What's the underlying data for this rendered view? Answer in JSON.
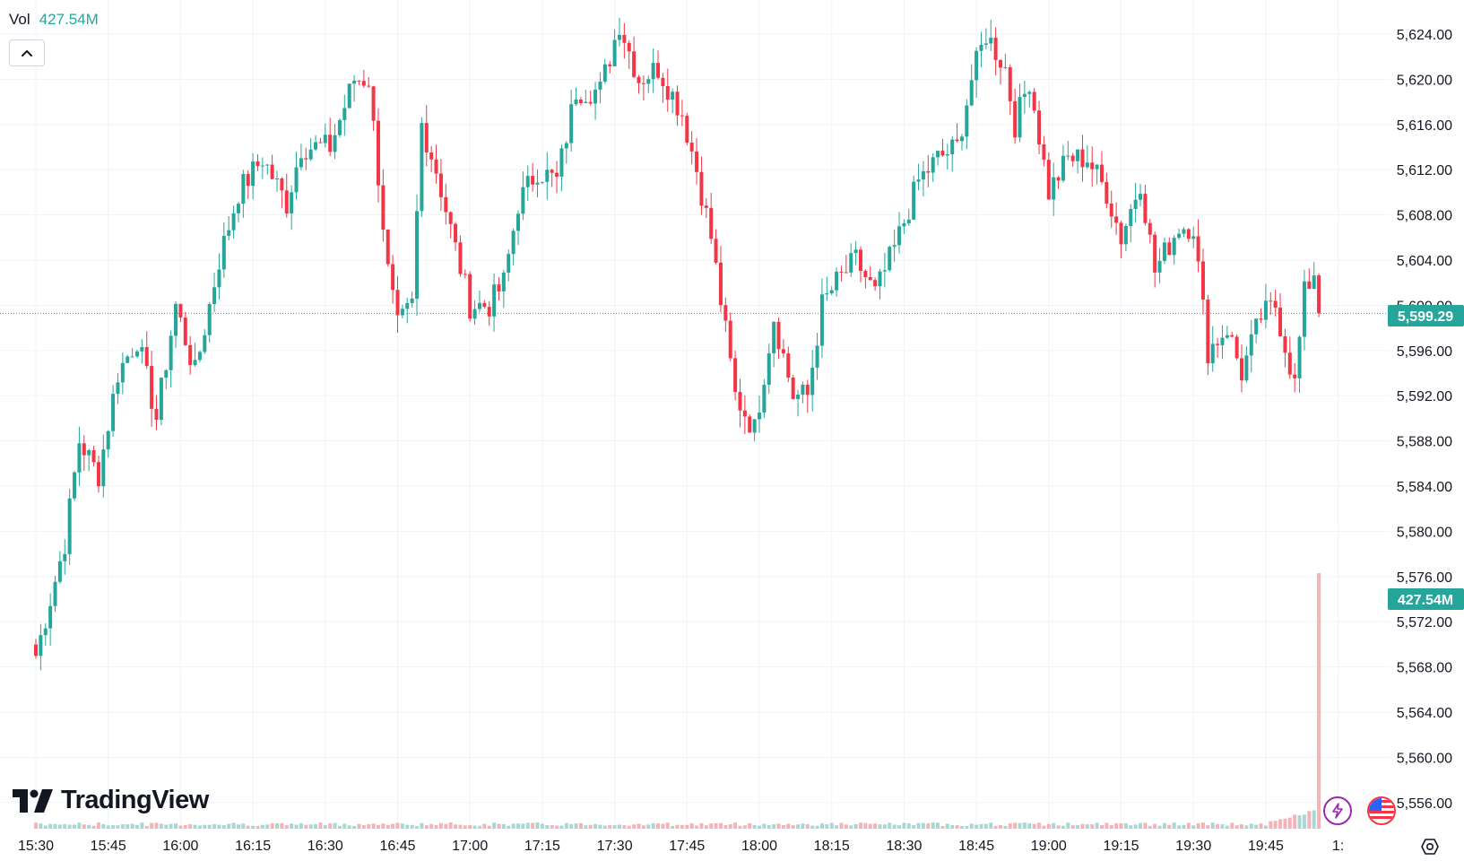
{
  "volume_legend": {
    "label": "Vol",
    "value": "427.54M"
  },
  "brand": {
    "name": "TradingView"
  },
  "price_badge": {
    "text": "5,599.29"
  },
  "volume_badge": {
    "text": "427.54M"
  },
  "icons": {
    "collapse": "chevron-up-icon",
    "flash": "lightning-icon",
    "flag": "us-flag-icon",
    "settings": "settings-icon",
    "logo": "tradingview-logo-icon"
  },
  "colors": {
    "up": "#26a69a",
    "down": "#f23645",
    "grid": "#f0f3fa",
    "volume_up": "#a7d8d3",
    "volume_down": "#f5b3b8",
    "text": "#131722"
  },
  "chart_data": {
    "type": "candlestick",
    "title": "",
    "x_ticks": [
      "15:30",
      "15:45",
      "16:00",
      "16:15",
      "16:30",
      "16:45",
      "17:00",
      "17:15",
      "17:30",
      "17:45",
      "18:00",
      "18:15",
      "18:30",
      "18:45",
      "19:00",
      "19:15",
      "19:30",
      "19:45",
      "1:"
    ],
    "y_ticks": [
      "5,624.00",
      "5,620.00",
      "5,616.00",
      "5,612.00",
      "5,608.00",
      "5,604.00",
      "5,600.00",
      "5,596.00",
      "5,592.00",
      "5,588.00",
      "5,584.00",
      "5,580.00",
      "5,576.00",
      "5,572.00",
      "5,568.00",
      "5,564.00",
      "5,560.00",
      "5,556.00"
    ],
    "ylim": [
      5554,
      5626.6
    ],
    "current_price": 5599.29,
    "candle_interval_minutes": 1,
    "grid": true,
    "waypoints": [
      {
        "t": "15:30",
        "p": 5569
      },
      {
        "t": "15:36",
        "p": 5579
      },
      {
        "t": "15:39",
        "p": 5588
      },
      {
        "t": "15:43",
        "p": 5585
      },
      {
        "t": "15:47",
        "p": 5594
      },
      {
        "t": "15:51",
        "p": 5597
      },
      {
        "t": "15:55",
        "p": 5590
      },
      {
        "t": "15:59",
        "p": 5600
      },
      {
        "t": "16:03",
        "p": 5594
      },
      {
        "t": "16:08",
        "p": 5604
      },
      {
        "t": "16:12",
        "p": 5610
      },
      {
        "t": "16:17",
        "p": 5613
      },
      {
        "t": "16:22",
        "p": 5609
      },
      {
        "t": "16:25",
        "p": 5614
      },
      {
        "t": "16:31",
        "p": 5614
      },
      {
        "t": "16:36",
        "p": 5620
      },
      {
        "t": "16:39",
        "p": 5620
      },
      {
        "t": "16:43",
        "p": 5603
      },
      {
        "t": "16:45",
        "p": 5598
      },
      {
        "t": "16:48",
        "p": 5600
      },
      {
        "t": "16:50",
        "p": 5616
      },
      {
        "t": "16:53",
        "p": 5612
      },
      {
        "t": "16:57",
        "p": 5605
      },
      {
        "t": "17:00",
        "p": 5600
      },
      {
        "t": "17:04",
        "p": 5600
      },
      {
        "t": "17:07",
        "p": 5602
      },
      {
        "t": "17:10",
        "p": 5609
      },
      {
        "t": "17:14",
        "p": 5612
      },
      {
        "t": "17:18",
        "p": 5611
      },
      {
        "t": "17:22",
        "p": 5619
      },
      {
        "t": "17:27",
        "p": 5619
      },
      {
        "t": "17:31",
        "p": 5625
      },
      {
        "t": "17:35",
        "p": 5620
      },
      {
        "t": "17:39",
        "p": 5621
      },
      {
        "t": "17:44",
        "p": 5617
      },
      {
        "t": "17:47",
        "p": 5612
      },
      {
        "t": "17:50",
        "p": 5606
      },
      {
        "t": "17:55",
        "p": 5592
      },
      {
        "t": "17:59",
        "p": 5589
      },
      {
        "t": "18:03",
        "p": 5599
      },
      {
        "t": "18:07",
        "p": 5592
      },
      {
        "t": "18:10",
        "p": 5592
      },
      {
        "t": "18:13",
        "p": 5600
      },
      {
        "t": "18:16",
        "p": 5602
      },
      {
        "t": "18:20",
        "p": 5604
      },
      {
        "t": "18:24",
        "p": 5601
      },
      {
        "t": "18:28",
        "p": 5605
      },
      {
        "t": "18:33",
        "p": 5611
      },
      {
        "t": "18:37",
        "p": 5613
      },
      {
        "t": "18:41",
        "p": 5614
      },
      {
        "t": "18:44",
        "p": 5620
      },
      {
        "t": "18:47",
        "p": 5624
      },
      {
        "t": "18:51",
        "p": 5621
      },
      {
        "t": "18:53",
        "p": 5616
      },
      {
        "t": "18:56",
        "p": 5620
      },
      {
        "t": "19:00",
        "p": 5610
      },
      {
        "t": "19:04",
        "p": 5613
      },
      {
        "t": "19:08",
        "p": 5613
      },
      {
        "t": "19:12",
        "p": 5610
      },
      {
        "t": "19:15",
        "p": 5606
      },
      {
        "t": "19:19",
        "p": 5611
      },
      {
        "t": "19:22",
        "p": 5603
      },
      {
        "t": "19:27",
        "p": 5607
      },
      {
        "t": "19:30",
        "p": 5607
      },
      {
        "t": "19:33",
        "p": 5596
      },
      {
        "t": "19:37",
        "p": 5598
      },
      {
        "t": "19:40",
        "p": 5594
      },
      {
        "t": "19:44",
        "p": 5599
      },
      {
        "t": "19:47",
        "p": 5600
      },
      {
        "t": "19:51",
        "p": 5593
      },
      {
        "t": "19:53",
        "p": 5601
      },
      {
        "t": "19:55",
        "p": 5603
      },
      {
        "t": "19:56",
        "p": 5599.29
      }
    ],
    "volume": {
      "last_bar_value": "427.54M",
      "typical_bar_ratio": 0.005
    }
  }
}
